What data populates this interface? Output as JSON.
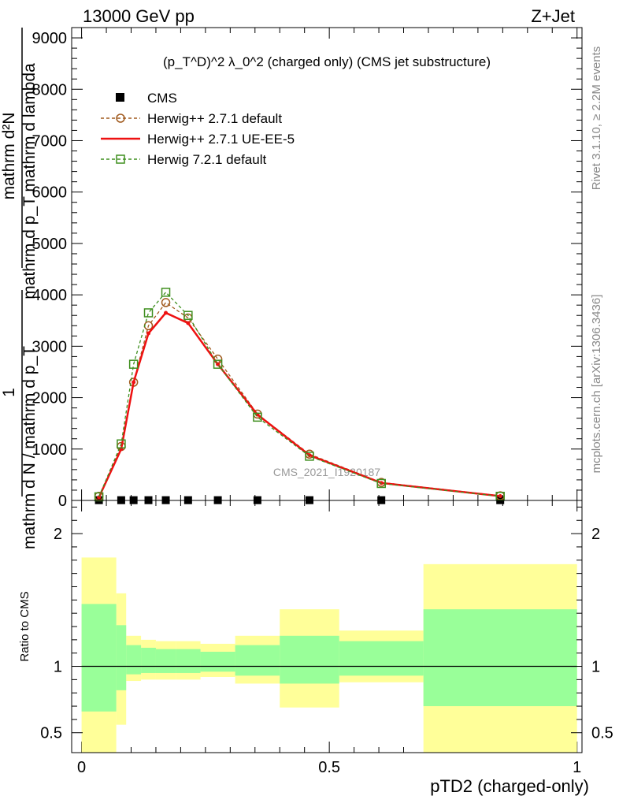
{
  "header": {
    "left": "13000 GeV pp",
    "right": "Z+Jet"
  },
  "side_text": {
    "rivet": "Rivet 3.1.10, ≥ 2.2M events",
    "mcplots": "mcplots.cern.ch [arXiv:1306.3436]"
  },
  "watermark": "CMS_2021_I1920187",
  "chart_data": [
    {
      "type": "line",
      "title": "(p_T^D)^2 λ_0^2 (charged only) (CMS jet substructure)",
      "ylabel_numerator": "mathrm d²N",
      "ylabel_denominator": "mathrm d p_T mathrm d lambda",
      "ylabel_prefix_num": "1",
      "ylabel_prefix_den": "mathrm d N / mathrm d p_T",
      "xlim": [
        -0.02,
        1.01
      ],
      "ylim": [
        0,
        9200
      ],
      "yticks": [
        0,
        1000,
        2000,
        3000,
        4000,
        5000,
        6000,
        7000,
        8000,
        9000
      ],
      "ytick_labels": [
        "0",
        "1000",
        "2000",
        "3000",
        "4000",
        "5000",
        "6000",
        "7000",
        "8000",
        "9000"
      ],
      "legend_position": "top-left",
      "series": [
        {
          "name": "CMS",
          "x": [
            0.035,
            0.08,
            0.105,
            0.135,
            0.17,
            0.215,
            0.275,
            0.355,
            0.46,
            0.605,
            0.845
          ],
          "y": [
            5,
            5,
            5,
            5,
            5,
            5,
            5,
            5,
            5,
            5,
            5
          ],
          "color": "#000000"
        },
        {
          "name": "Herwig++ 2.7.1 default",
          "x": [
            0.035,
            0.08,
            0.105,
            0.135,
            0.17,
            0.215,
            0.275,
            0.355,
            0.46,
            0.605,
            0.845
          ],
          "y": [
            80,
            1050,
            2300,
            3400,
            3850,
            3550,
            2750,
            1680,
            900,
            350,
            90
          ],
          "color": "#a05a1e"
        },
        {
          "name": "Herwig++ 2.7.1 UE-EE-5",
          "x": [
            0.035,
            0.08,
            0.105,
            0.135,
            0.17,
            0.215,
            0.275,
            0.355,
            0.46,
            0.605,
            0.845
          ],
          "y": [
            60,
            1000,
            2300,
            3250,
            3650,
            3450,
            2650,
            1670,
            880,
            340,
            85
          ],
          "color": "#ee1111"
        },
        {
          "name": "Herwig 7.2.1 default",
          "x": [
            0.035,
            0.08,
            0.105,
            0.135,
            0.17,
            0.215,
            0.275,
            0.355,
            0.46,
            0.605,
            0.845
          ],
          "y": [
            70,
            1100,
            2650,
            3650,
            4050,
            3600,
            2650,
            1620,
            860,
            330,
            80
          ],
          "color": "#3f8f1f"
        }
      ]
    },
    {
      "type": "area",
      "ylabel": "Ratio to CMS",
      "xlabel": "pTD2 (charged-only)",
      "xlim": [
        -0.02,
        1.01
      ],
      "ylim": [
        0.35,
        2.25
      ],
      "xticks": [
        0,
        0.5,
        1
      ],
      "xtick_labels": [
        "0",
        "0.5",
        "1"
      ],
      "yticks": [
        0.5,
        1,
        2
      ],
      "ytick_labels": [
        "0.5",
        "1",
        "2"
      ],
      "bins": [
        {
          "lo": 0.0,
          "hi": 0.07,
          "yellow": [
            0.35,
            1.82
          ],
          "green": [
            0.66,
            1.47
          ]
        },
        {
          "lo": 0.07,
          "hi": 0.09,
          "yellow": [
            0.56,
            1.55
          ],
          "green": [
            0.82,
            1.31
          ]
        },
        {
          "lo": 0.09,
          "hi": 0.12,
          "yellow": [
            0.89,
            1.23
          ],
          "green": [
            0.94,
            1.16
          ]
        },
        {
          "lo": 0.12,
          "hi": 0.15,
          "yellow": [
            0.9,
            1.2
          ],
          "green": [
            0.95,
            1.14
          ]
        },
        {
          "lo": 0.15,
          "hi": 0.19,
          "yellow": [
            0.9,
            1.19
          ],
          "green": [
            0.95,
            1.13
          ]
        },
        {
          "lo": 0.19,
          "hi": 0.24,
          "yellow": [
            0.9,
            1.19
          ],
          "green": [
            0.95,
            1.13
          ]
        },
        {
          "lo": 0.24,
          "hi": 0.31,
          "yellow": [
            0.92,
            1.17
          ],
          "green": [
            0.96,
            1.11
          ]
        },
        {
          "lo": 0.31,
          "hi": 0.4,
          "yellow": [
            0.87,
            1.23
          ],
          "green": [
            0.93,
            1.16
          ]
        },
        {
          "lo": 0.4,
          "hi": 0.52,
          "yellow": [
            0.69,
            1.43
          ],
          "green": [
            0.87,
            1.23
          ]
        },
        {
          "lo": 0.52,
          "hi": 0.69,
          "yellow": [
            0.88,
            1.27
          ],
          "green": [
            0.93,
            1.19
          ]
        },
        {
          "lo": 0.69,
          "hi": 1.0,
          "yellow": [
            0.35,
            1.77
          ],
          "green": [
            0.7,
            1.43
          ]
        }
      ]
    }
  ]
}
